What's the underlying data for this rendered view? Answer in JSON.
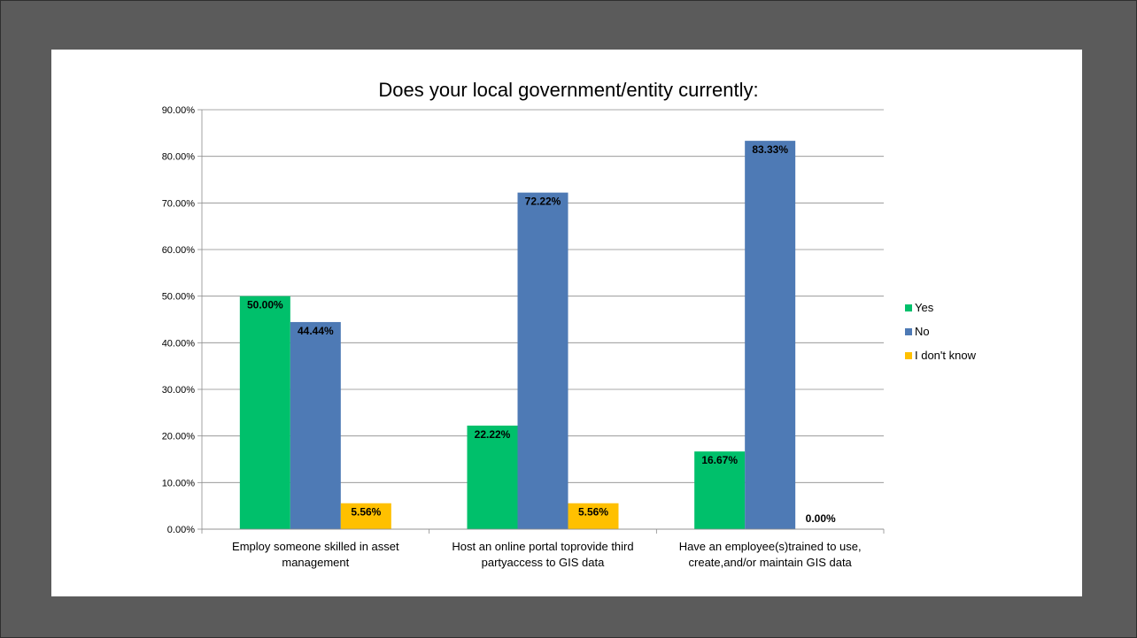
{
  "chart_data": {
    "type": "bar",
    "title": "Does your local government/entity currently:",
    "categories": [
      [
        "Employ someone skilled in asset",
        "management"
      ],
      [
        "Host an online portal toprovide third",
        "partyaccess to GIS data"
      ],
      [
        "Have an employee(s)trained to use,",
        "create,and/or maintain GIS data"
      ]
    ],
    "series": [
      {
        "name": "Yes",
        "color": "#00c06b",
        "values": [
          50.0,
          22.22,
          16.67
        ],
        "labels": [
          "50.00%",
          "22.22%",
          "16.67%"
        ]
      },
      {
        "name": "No",
        "color": "#4e7ab5",
        "values": [
          44.44,
          72.22,
          83.33
        ],
        "labels": [
          "44.44%",
          "72.22%",
          "83.33%"
        ]
      },
      {
        "name": "I don't know",
        "color": "#ffc000",
        "values": [
          5.56,
          5.56,
          0.0
        ],
        "labels": [
          "5.56%",
          "5.56%",
          "0.00%"
        ]
      }
    ],
    "yticks": [
      "0.00%",
      "10.00%",
      "20.00%",
      "30.00%",
      "40.00%",
      "50.00%",
      "60.00%",
      "70.00%",
      "80.00%",
      "90.00%"
    ],
    "ylim": [
      0,
      90
    ],
    "grid": true,
    "legend": "right"
  }
}
